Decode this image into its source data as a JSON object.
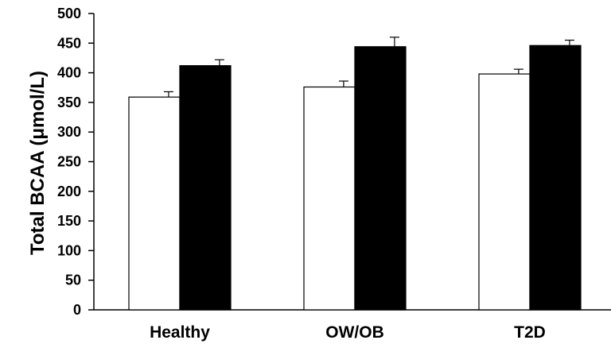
{
  "chart_data": {
    "type": "bar",
    "categories": [
      "Healthy",
      "OW/OB",
      "T2D"
    ],
    "series": [
      {
        "values": [
          359,
          376,
          398
        ],
        "errors": [
          9,
          10,
          8
        ],
        "fill": "#ffffff"
      },
      {
        "values": [
          412,
          444,
          446
        ],
        "errors": [
          10,
          16,
          9
        ],
        "fill": "#000000"
      }
    ],
    "title": "",
    "xlabel": "",
    "ylabel": "Total BCAA (μmol/L)",
    "ylim": [
      0,
      500
    ],
    "yticks": [
      0,
      50,
      100,
      150,
      200,
      250,
      300,
      350,
      400,
      450,
      500
    ],
    "grid": false,
    "legend": "none"
  }
}
